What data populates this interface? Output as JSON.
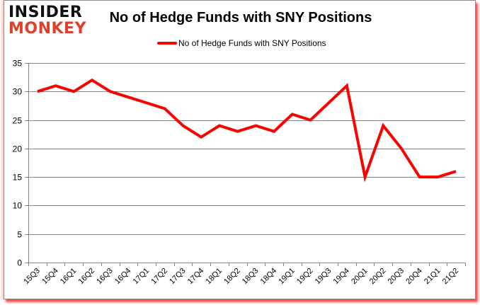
{
  "brand": {
    "logo_line1": "INSIDER",
    "logo_line2": "MONKEY",
    "logo_line1_color": "#111111",
    "logo_line2_color": "#e0402a"
  },
  "chart_data": {
    "type": "line",
    "title": "No of Hedge Funds with SNY Positions",
    "xlabel": "",
    "ylabel": "",
    "ylim": [
      0,
      35
    ],
    "yticks": [
      0,
      5,
      10,
      15,
      20,
      25,
      30,
      35
    ],
    "grid": true,
    "legend_position": "top",
    "categories": [
      "15Q3",
      "15Q4",
      "16Q1",
      "16Q2",
      "16Q3",
      "16Q4",
      "17Q1",
      "17Q2",
      "17Q3",
      "17Q4",
      "18Q1",
      "18Q2",
      "18Q3",
      "18Q4",
      "19Q1",
      "19Q2",
      "19Q3",
      "19Q4",
      "20Q1",
      "20Q2",
      "20Q3",
      "20Q4",
      "21Q1",
      "21Q2"
    ],
    "series": [
      {
        "name": "No of Hedge Funds with SNY Positions",
        "color": "#ff0000",
        "values": [
          30,
          31,
          30,
          32,
          30,
          29,
          28,
          27,
          24,
          22,
          24,
          23,
          24,
          23,
          26,
          25,
          28,
          31,
          15,
          24,
          20,
          15,
          15,
          16
        ]
      }
    ]
  }
}
